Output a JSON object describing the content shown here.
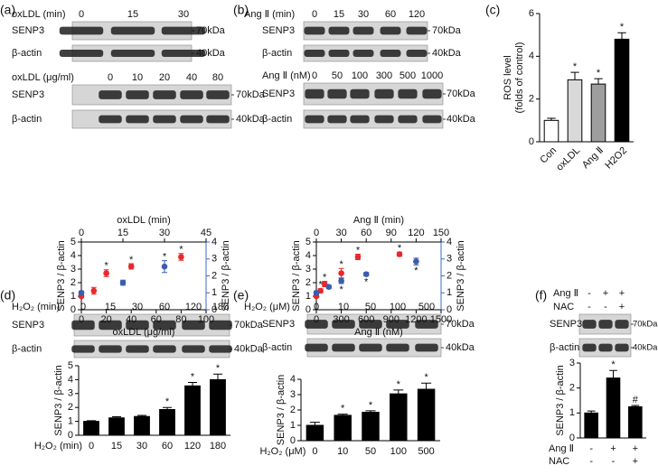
{
  "panel_labels": [
    "(a)",
    "(b)",
    "(c)",
    "(d)",
    "(e)",
    "(f)"
  ],
  "blots": [
    {
      "header": "oxLDL (min)",
      "lanes": [
        "0",
        "15",
        "30"
      ],
      "rows": [
        "SENP3",
        "β-actin"
      ],
      "markers": [
        "70kDa",
        "40kDa"
      ]
    },
    {
      "header": "oxLDL (μg/ml)",
      "lanes": [
        "0",
        "10",
        "20",
        "40",
        "80"
      ],
      "rows": [
        "SENP3",
        "β-actin"
      ],
      "markers": [
        "70kDa",
        "40kDa"
      ]
    },
    {
      "header": "Ang Ⅱ (min)",
      "lanes": [
        "0",
        "15",
        "30",
        "60",
        "120"
      ],
      "rows": [
        "SENP3",
        "β-actin"
      ],
      "markers": [
        "70kDa",
        "40kDa"
      ]
    },
    {
      "header": "Ang Ⅱ (nM)",
      "lanes": [
        "0",
        "50",
        "100",
        "300",
        "500",
        "1000"
      ],
      "rows": [
        "SENP3",
        "β-actin"
      ],
      "markers": [
        "70kDa",
        "40kDa"
      ]
    },
    {
      "header": "H₂O₂ (min)",
      "lanes": [
        "0",
        "15",
        "30",
        "60",
        "120",
        "180"
      ],
      "rows": [
        "SENP3",
        "β-actin"
      ],
      "markers": [
        "70kDa",
        "40kDa"
      ]
    },
    {
      "header": "H₂O₂ (μM)",
      "lanes": [
        "0",
        "10",
        "50",
        "100",
        "500"
      ],
      "rows": [
        "SENP3",
        "β-actin"
      ],
      "markers": [
        "70kDa",
        "40kDa"
      ]
    },
    {
      "conditions": [
        {
          "name": "Ang Ⅱ",
          "signs": [
            "-",
            "+",
            "+"
          ]
        },
        {
          "name": "NAC",
          "signs": [
            "-",
            "-",
            "+"
          ]
        }
      ],
      "rows": [
        "SENP3",
        "β-actin"
      ],
      "markers": [
        "70kDa",
        "40kDa"
      ]
    }
  ],
  "chart_data": [
    {
      "type": "scatter",
      "x_label": "oxLDL (μg/ml)",
      "x2_label": "oxLDL (min)",
      "y_label": "SENP3 / β-actin",
      "y2_label": "SENP3 / β-actin",
      "xlim": [
        0,
        100
      ],
      "xticks": [
        0,
        20,
        40,
        60,
        80,
        100
      ],
      "x2lim": [
        0,
        45
      ],
      "x2ticks": [
        0,
        15,
        30,
        45
      ],
      "ylim": [
        0,
        5
      ],
      "yticks": [
        0,
        1,
        2,
        3,
        4,
        5
      ],
      "y2lim": [
        0,
        4
      ],
      "y2ticks": [
        0,
        1,
        2,
        3,
        4
      ],
      "y2_color": "#3b6cc4",
      "series": [
        {
          "color": "#e8282b",
          "x": [
            0,
            10,
            20,
            40,
            80
          ],
          "values": [
            1.0,
            1.4,
            2.7,
            3.2,
            3.9
          ],
          "errors": [
            0.1,
            0.25,
            0.25,
            0.2,
            0.25
          ],
          "annotations": [
            null,
            null,
            "*",
            "*",
            "*"
          ],
          "annotation_position": "above"
        },
        {
          "color": "#3b5cb0",
          "axis": "y2",
          "xaxis": "x2",
          "x": [
            0,
            15,
            30
          ],
          "values": [
            1.0,
            1.6,
            2.55
          ],
          "errors": [
            0.1,
            0.15,
            0.35
          ],
          "annotations": [
            null,
            null,
            "*"
          ],
          "annotation_position": "above"
        }
      ]
    },
    {
      "type": "scatter",
      "x_label": "Ang Ⅱ (nM)",
      "x2_label": "Ang Ⅱ (min)",
      "y_label": "SENP3 / β-actin",
      "y2_label": "SENP3 / β-actin",
      "xlim": [
        0,
        1500
      ],
      "xticks": [
        0,
        300,
        600,
        900,
        1200,
        1500
      ],
      "x2lim": [
        0,
        150
      ],
      "x2ticks": [
        0,
        30,
        60,
        90,
        120,
        150
      ],
      "ylim": [
        0,
        5
      ],
      "yticks": [
        0,
        1,
        2,
        3,
        4,
        5
      ],
      "y2lim": [
        0,
        4
      ],
      "y2ticks": [
        0,
        1,
        2,
        3,
        4
      ],
      "y2_color": "#3b6cc4",
      "series": [
        {
          "color": "#e8282b",
          "x": [
            0,
            50,
            100,
            300,
            500,
            1000
          ],
          "values": [
            1.0,
            1.4,
            1.9,
            2.7,
            3.9,
            4.1
          ],
          "errors": [
            0.1,
            0.15,
            0.2,
            0.35,
            0.2,
            0.15
          ],
          "annotations": [
            null,
            "*",
            "*",
            "*",
            "*",
            "*"
          ],
          "annotation_position": "above"
        },
        {
          "color": "#3b5cb0",
          "axis": "y2",
          "xaxis": "x2",
          "x": [
            0,
            15,
            30,
            60,
            120
          ],
          "values": [
            1.0,
            1.35,
            1.7,
            2.1,
            2.85
          ],
          "errors": [
            0.1,
            0.1,
            0.15,
            0.1,
            0.2
          ],
          "annotations": [
            null,
            null,
            "*",
            "*",
            "*"
          ],
          "annotation_position": "below"
        }
      ]
    },
    {
      "type": "bar",
      "y_label": [
        "ROS level",
        "(folds of control)"
      ],
      "categories": [
        "Con",
        "oxLDL",
        "Ang Ⅱ",
        "H2O2"
      ],
      "category_rotation": -45,
      "values": [
        1.0,
        2.9,
        2.7,
        4.8
      ],
      "errors": [
        0.1,
        0.35,
        0.25,
        0.3
      ],
      "annotations": [
        null,
        "*",
        "*",
        "*"
      ],
      "colors": [
        "#ffffff",
        "#d9d9d9",
        "#9e9e9e",
        "#000000"
      ],
      "ylim": [
        0,
        6
      ],
      "yticks": [
        0,
        2,
        4,
        6
      ]
    },
    {
      "type": "bar",
      "y_label": [
        "SENP3 / β-actin"
      ],
      "x_label": "H₂O₂ (min)",
      "categories": [
        "0",
        "15",
        "30",
        "60",
        "120",
        "180"
      ],
      "values": [
        1.0,
        1.25,
        1.35,
        1.85,
        3.55,
        4.0
      ],
      "errors": [
        0.05,
        0.08,
        0.08,
        0.15,
        0.25,
        0.4
      ],
      "annotations": [
        null,
        null,
        null,
        "*",
        "*",
        "*"
      ],
      "color": "#000000",
      "ylim": [
        0,
        5
      ],
      "yticks": [
        0,
        1,
        2,
        3,
        4,
        5
      ]
    },
    {
      "type": "bar",
      "y_label": [
        "SENP3 / β-actin"
      ],
      "x_label": "H₂O₂ (μM)",
      "categories": [
        "0",
        "10",
        "50",
        "100",
        "500"
      ],
      "values": [
        1.0,
        1.65,
        1.85,
        3.05,
        3.35
      ],
      "errors": [
        0.2,
        0.08,
        0.1,
        0.25,
        0.4
      ],
      "annotations": [
        null,
        "*",
        "*",
        "*",
        "*"
      ],
      "color": "#000000",
      "ylim": [
        0,
        4
      ],
      "yticks": [
        0,
        1,
        2,
        3,
        4
      ]
    },
    {
      "type": "bar",
      "y_label": [
        "SENP3 / β-actin"
      ],
      "conditions": [
        {
          "name": "Ang Ⅱ",
          "signs": [
            "-",
            "+",
            "+"
          ]
        },
        {
          "name": "NAC",
          "signs": [
            "-",
            "-",
            "+"
          ]
        }
      ],
      "values": [
        1.0,
        2.4,
        1.25
      ],
      "errors": [
        0.08,
        0.3,
        0.05
      ],
      "annotations": [
        null,
        "*",
        "#"
      ],
      "color": "#000000",
      "ylim": [
        0,
        3
      ],
      "yticks": [
        0,
        1,
        2,
        3
      ]
    }
  ]
}
